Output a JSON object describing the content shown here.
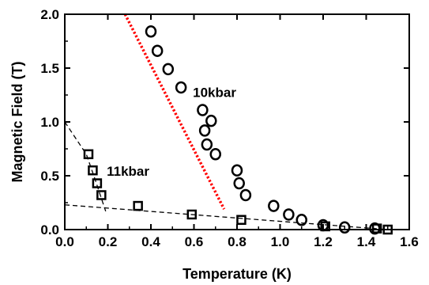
{
  "chart_data": {
    "type": "scatter",
    "xlabel": "Temperature (K)",
    "ylabel": "Magnetic Field (T)",
    "xlim": [
      0.0,
      1.6
    ],
    "ylim": [
      0.0,
      2.0
    ],
    "xticks": [
      "0.0",
      "0.2",
      "0.4",
      "0.6",
      "0.8",
      "1.0",
      "1.2",
      "1.4",
      "1.6"
    ],
    "yticks": [
      "0.0",
      "0.5",
      "1.0",
      "1.5",
      "2.0"
    ],
    "grid": false,
    "annotations": [
      "10kbar",
      "11kbar"
    ],
    "series": [
      {
        "name": "10kbar",
        "marker": "circle",
        "color": "#000000",
        "x": [
          0.4,
          0.43,
          0.48,
          0.54,
          0.64,
          0.65,
          0.66,
          0.68,
          0.7,
          0.8,
          0.81,
          0.84,
          0.97,
          1.04,
          1.1,
          1.2,
          1.3,
          1.44
        ],
        "y": [
          1.84,
          1.66,
          1.49,
          1.32,
          1.11,
          0.92,
          0.79,
          1.01,
          0.7,
          0.55,
          0.43,
          0.32,
          0.22,
          0.14,
          0.09,
          0.04,
          0.02,
          0.01
        ]
      },
      {
        "name": "11kbar",
        "marker": "square",
        "color": "#000000",
        "x": [
          0.11,
          0.13,
          0.15,
          0.17,
          0.34,
          0.59,
          0.82,
          1.21,
          1.45,
          1.5
        ],
        "y": [
          0.7,
          0.55,
          0.43,
          0.32,
          0.22,
          0.14,
          0.09,
          0.03,
          0.01,
          0.0
        ]
      }
    ],
    "lines": [
      {
        "style": "dotted-red",
        "color": "#ff0000",
        "points": [
          [
            0.28,
            2.0
          ],
          [
            0.74,
            0.19
          ]
        ]
      },
      {
        "style": "dashed-black",
        "color": "#000000",
        "points": [
          [
            0.0,
            1.0
          ],
          [
            0.1,
            0.7
          ],
          [
            0.14,
            0.47
          ],
          [
            0.19,
            0.17
          ]
        ]
      },
      {
        "style": "dashed-black",
        "color": "#000000",
        "points": [
          [
            0.0,
            0.23
          ],
          [
            1.5,
            0.0
          ]
        ]
      }
    ]
  }
}
